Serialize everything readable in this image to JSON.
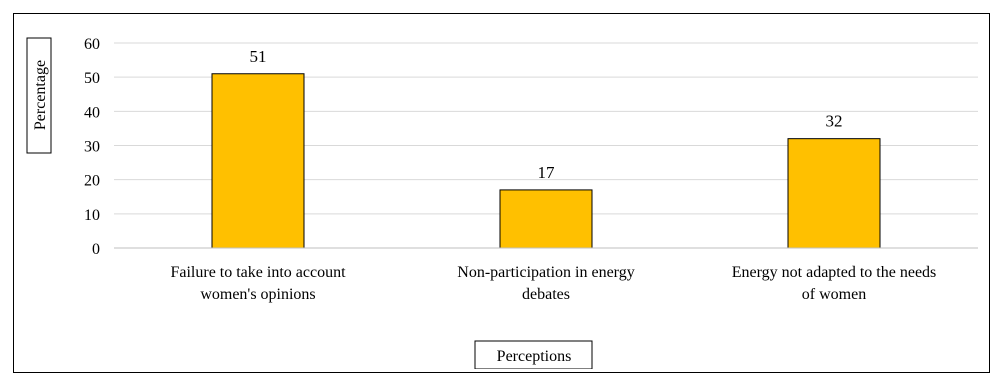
{
  "chart_data": {
    "type": "bar",
    "categories": [
      [
        "Failure to take into account",
        "women's opinions"
      ],
      [
        "Non-participation in energy",
        "debates"
      ],
      [
        "Energy not adapted to the needs",
        "of women"
      ]
    ],
    "values": [
      51,
      17,
      32
    ],
    "data_labels": [
      "51",
      "17",
      "32"
    ],
    "ylabel": "Percentage",
    "xlabel": "Perceptions",
    "ylim": [
      0,
      60
    ],
    "yticks": [
      0,
      10,
      20,
      30,
      40,
      50,
      60
    ],
    "grid": true,
    "bar_color": "#FFC000",
    "bar_edge": "#000000"
  }
}
